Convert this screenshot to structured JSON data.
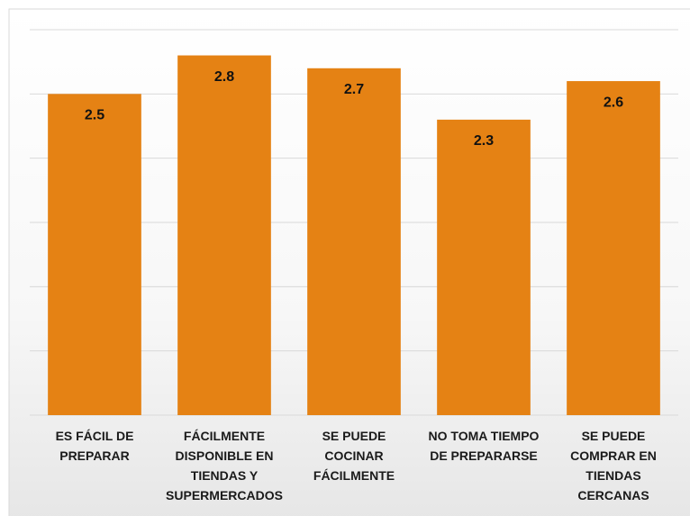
{
  "chart_data": {
    "type": "bar",
    "categories": [
      "ES FÁCIL DE PREPARAR",
      "FÁCILMENTE DISPONIBLE EN TIENDAS Y SUPERMERCADOS",
      "SE PUEDE COCINAR FÁCILMENTE",
      "NO TOMA TIEMPO DE PREPARARSE",
      "SE PUEDE COMPRAR EN TIENDAS CERCANAS"
    ],
    "values": [
      2.5,
      2.8,
      2.7,
      2.3,
      2.6
    ],
    "color": "#e58214",
    "ylim": [
      0,
      3
    ],
    "yticks": [
      0,
      0.5,
      1,
      1.5,
      2,
      2.5,
      3
    ],
    "grid": true
  }
}
